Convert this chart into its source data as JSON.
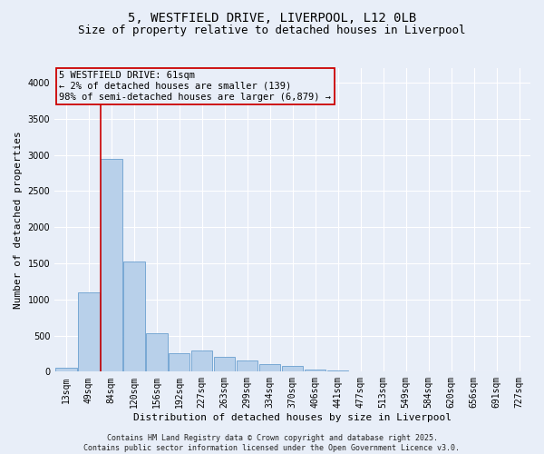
{
  "title_line1": "5, WESTFIELD DRIVE, LIVERPOOL, L12 0LB",
  "title_line2": "Size of property relative to detached houses in Liverpool",
  "xlabel": "Distribution of detached houses by size in Liverpool",
  "ylabel": "Number of detached properties",
  "categories": [
    "13sqm",
    "49sqm",
    "84sqm",
    "120sqm",
    "156sqm",
    "192sqm",
    "227sqm",
    "263sqm",
    "299sqm",
    "334sqm",
    "370sqm",
    "406sqm",
    "441sqm",
    "477sqm",
    "513sqm",
    "549sqm",
    "584sqm",
    "620sqm",
    "656sqm",
    "691sqm",
    "727sqm"
  ],
  "values": [
    50,
    1100,
    2950,
    1530,
    530,
    250,
    290,
    200,
    155,
    100,
    80,
    30,
    15,
    8,
    5,
    3,
    3,
    2,
    2,
    2,
    2
  ],
  "bar_color": "#b8d0ea",
  "bar_edge_color": "#6a9fcf",
  "annotation_line_color": "#cc0000",
  "annotation_box_edge_color": "#cc0000",
  "annotation_text_line1": "5 WESTFIELD DRIVE: 61sqm",
  "annotation_text_line2": "← 2% of detached houses are smaller (139)",
  "annotation_text_line3": "98% of semi-detached houses are larger (6,879) →",
  "ylim": [
    0,
    4200
  ],
  "yticks": [
    0,
    500,
    1000,
    1500,
    2000,
    2500,
    3000,
    3500,
    4000
  ],
  "background_color": "#e8eef8",
  "grid_color": "#ffffff",
  "footer_line1": "Contains HM Land Registry data © Crown copyright and database right 2025.",
  "footer_line2": "Contains public sector information licensed under the Open Government Licence v3.0.",
  "title_fontsize": 10,
  "subtitle_fontsize": 9,
  "axis_label_fontsize": 8,
  "tick_fontsize": 7,
  "annotation_fontsize": 7.5,
  "footer_fontsize": 6
}
